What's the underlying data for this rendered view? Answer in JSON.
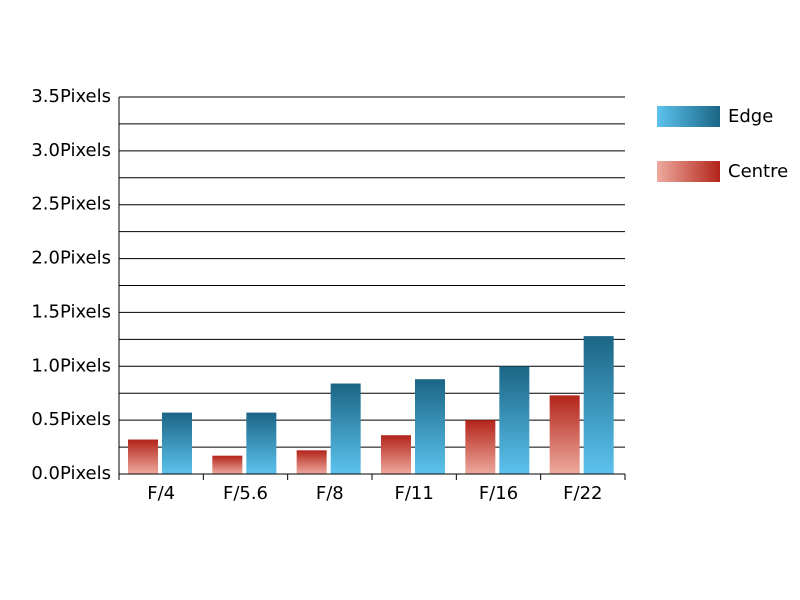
{
  "chart_data": {
    "type": "bar",
    "categories": [
      "F/4",
      "F/5.6",
      "F/8",
      "F/11",
      "F/16",
      "F/22"
    ],
    "series": [
      {
        "name": "Edge",
        "color": "#1b6585",
        "color_light": "#5cc3ee",
        "values": [
          0.57,
          0.57,
          0.84,
          0.88,
          1.0,
          1.28
        ]
      },
      {
        "name": "Centre",
        "color": "#b3241a",
        "color_light": "#eeaa9e",
        "values": [
          0.32,
          0.17,
          0.22,
          0.36,
          0.5,
          0.73
        ]
      }
    ],
    "ylim": [
      0,
      3.5
    ],
    "yticks": [
      {
        "value": 0,
        "label": "0.0Pixels"
      },
      {
        "value": 0.5,
        "label": "0.5Pixels"
      },
      {
        "value": 1,
        "label": "1.0Pixels"
      },
      {
        "value": 1.5,
        "label": "1.5Pixels"
      },
      {
        "value": 2,
        "label": "2.0Pixels"
      },
      {
        "value": 2.5,
        "label": "2.5Pixels"
      },
      {
        "value": 3,
        "label": "3.0Pixels"
      },
      {
        "value": 3.5,
        "label": "3.5Pixels"
      }
    ],
    "minor_yticks": [
      0.25,
      0.75,
      1.25,
      1.75,
      2.25,
      2.75,
      3.25
    ],
    "grid": true,
    "legend": "right"
  }
}
